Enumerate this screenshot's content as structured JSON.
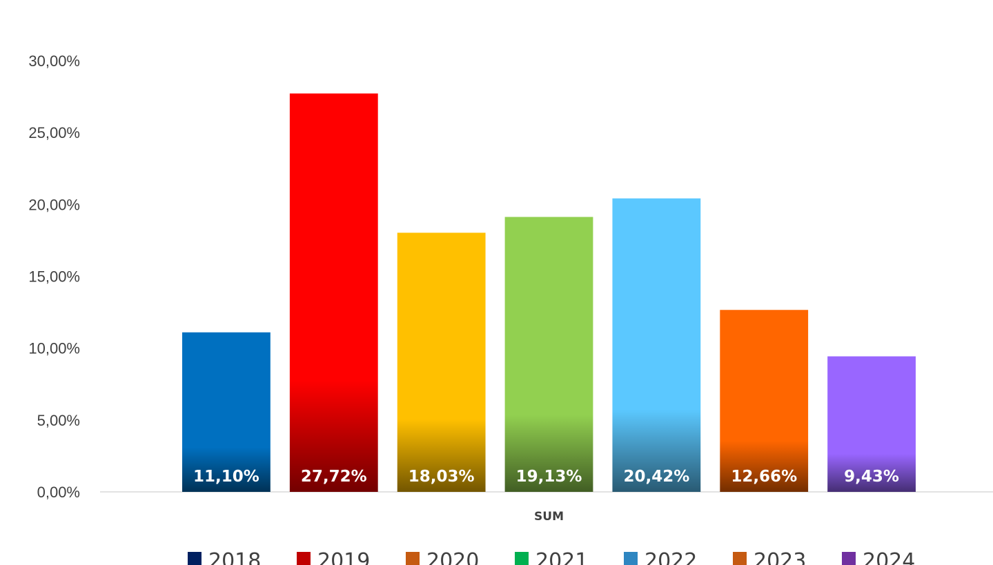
{
  "chart_data": {
    "type": "bar",
    "categories": [
      "SUM"
    ],
    "ylim": [
      0,
      30
    ],
    "yticks": [
      "0,00%",
      "5,00%",
      "10,00%",
      "15,00%",
      "20,00%",
      "25,00%",
      "30,00%"
    ],
    "grid": false,
    "legend_position": "bottom",
    "series": [
      {
        "name": "2018",
        "value": 11.1,
        "label": "11,10%",
        "color": "#0070C0",
        "legend_color": "#002060"
      },
      {
        "name": "2019",
        "value": 27.72,
        "label": "27,72%",
        "color": "#FF0000",
        "legend_color": "#C00000"
      },
      {
        "name": "2020",
        "value": 18.03,
        "label": "18,03%",
        "color": "#FFC000",
        "legend_color": "#C55A11"
      },
      {
        "name": "2021",
        "value": 19.13,
        "label": "19,13%",
        "color": "#92D050",
        "legend_color": "#00B050"
      },
      {
        "name": "2022",
        "value": 20.42,
        "label": "20,42%",
        "color": "#5BC8FF",
        "legend_color": "#2E86C1"
      },
      {
        "name": "2023",
        "value": 12.66,
        "label": "12,66%",
        "color": "#FF6600",
        "legend_color": "#C55A11"
      },
      {
        "name": "2024",
        "value": 9.43,
        "label": "9,43%",
        "color": "#9966FF",
        "legend_color": "#7030A0"
      }
    ]
  }
}
